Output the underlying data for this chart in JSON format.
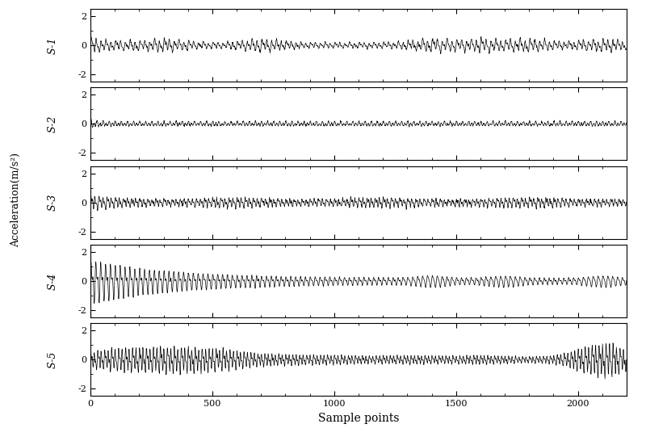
{
  "n_samples": 2200,
  "n_signals": 5,
  "signal_labels": [
    "S-1",
    "S-2",
    "S-3",
    "S-4",
    "S-5"
  ],
  "ylim": [
    -2.5,
    2.5
  ],
  "yticks": [
    -2,
    0,
    2
  ],
  "xlim": [
    0,
    2200
  ],
  "xticks": [
    0,
    500,
    1000,
    1500,
    2000
  ],
  "xlabel": "Sample points",
  "ylabel": "Acceleration(m/s²)",
  "background_color": "#ffffff",
  "line_color": "#000000"
}
